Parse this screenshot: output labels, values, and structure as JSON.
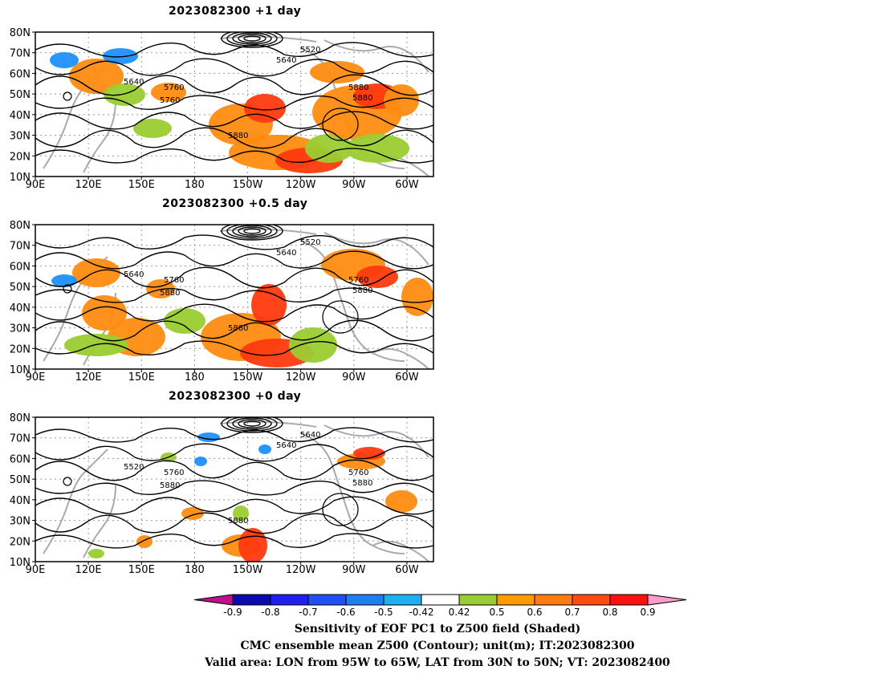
{
  "panels": [
    {
      "title": "2023082300  +1 day"
    },
    {
      "title": "2023082300  +0.5 day"
    },
    {
      "title": "2023082300  +0 day"
    }
  ],
  "lat_labels": [
    "80N",
    "70N",
    "60N",
    "50N",
    "40N",
    "30N",
    "20N",
    "10N"
  ],
  "lon_labels": [
    "90E",
    "120E",
    "150E",
    "180",
    "150W",
    "120W",
    "90W",
    "60W"
  ],
  "contour_labels": {
    "panel1": [
      "5520",
      "5640",
      "5640",
      "5760",
      "5760",
      "5880",
      "5880",
      "5880"
    ],
    "panel2": [
      "5520",
      "5640",
      "5640",
      "5760",
      "5880",
      "5760",
      "5880",
      "5880"
    ],
    "panel3": [
      "5640",
      "5640",
      "5520",
      "5760",
      "5880",
      "5760",
      "5880",
      "5880"
    ]
  },
  "colorbar": {
    "ticks": [
      "-0.9",
      "-0.8",
      "-0.7",
      "-0.6",
      "-0.5",
      "-0.42",
      "0.42",
      "0.5",
      "0.6",
      "0.7",
      "0.8",
      "0.9"
    ],
    "colors": [
      "#0a0ab0",
      "#1f1ff0",
      "#1f4ff5",
      "#1e7ff0",
      "#1eb0f5",
      "#ffffff",
      "#9acd32",
      "#ff9a00",
      "#ff7a10",
      "#ff4a10",
      "#ff1010"
    ],
    "low_color": "#c0108f",
    "high_color": "#ff9ccc"
  },
  "captions": {
    "line1": "Sensitivity of EOF PC1 to Z500 field (Shaded)",
    "line2": "CMC ensemble mean Z500 (Contour); unit(m); IT:2023082300",
    "line3": "Valid area: LON from 95W to 65W, LAT from 30N to 50N; VT: 2023082400"
  }
}
